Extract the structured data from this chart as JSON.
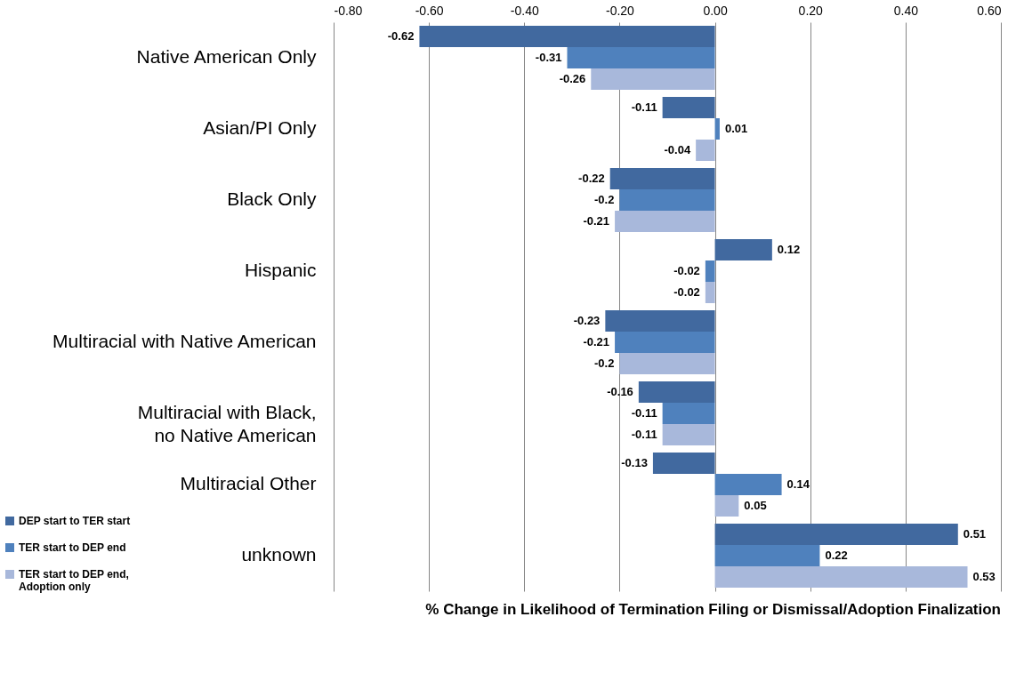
{
  "chart_data": {
    "type": "bar",
    "orientation": "horizontal",
    "xlabel": "% Change in Likelihood of Termination Filing or Dismissal/Adoption Finalization",
    "categories": [
      "Native American Only",
      "Asian/PI Only",
      "Black Only",
      "Hispanic",
      "Multiracial with Native American",
      "Multiracial with Black,\nno Native American",
      "Multiracial Other",
      "unknown"
    ],
    "series": [
      {
        "name": "DEP start to TER start",
        "color": "#41699f",
        "values": [
          -0.62,
          -0.11,
          -0.22,
          0.12,
          -0.23,
          -0.16,
          -0.13,
          0.51
        ]
      },
      {
        "name": "TER start to DEP end",
        "color": "#4f81bd",
        "values": [
          -0.31,
          0.01,
          -0.2,
          -0.02,
          -0.21,
          -0.11,
          0.14,
          0.22
        ]
      },
      {
        "name": "TER start to DEP end,\nAdoption only",
        "color": "#a8b8db",
        "values": [
          -0.26,
          -0.04,
          -0.21,
          -0.02,
          -0.2,
          -0.11,
          0.05,
          0.53
        ]
      }
    ],
    "xlim": [
      -0.8,
      0.6
    ],
    "xticks": [
      {
        "value": -0.8,
        "label": "-0.80"
      },
      {
        "value": -0.6,
        "label": "-0.60"
      },
      {
        "value": -0.4,
        "label": "-0.40"
      },
      {
        "value": -0.2,
        "label": "-0.20"
      },
      {
        "value": 0,
        "label": "0.00"
      },
      {
        "value": 0.2,
        "label": "0.20"
      },
      {
        "value": 0.4,
        "label": "0.40"
      },
      {
        "value": 0.6,
        "label": "0.60"
      }
    ],
    "grid": "x",
    "legend": "bottom left",
    "data_labels": true
  }
}
